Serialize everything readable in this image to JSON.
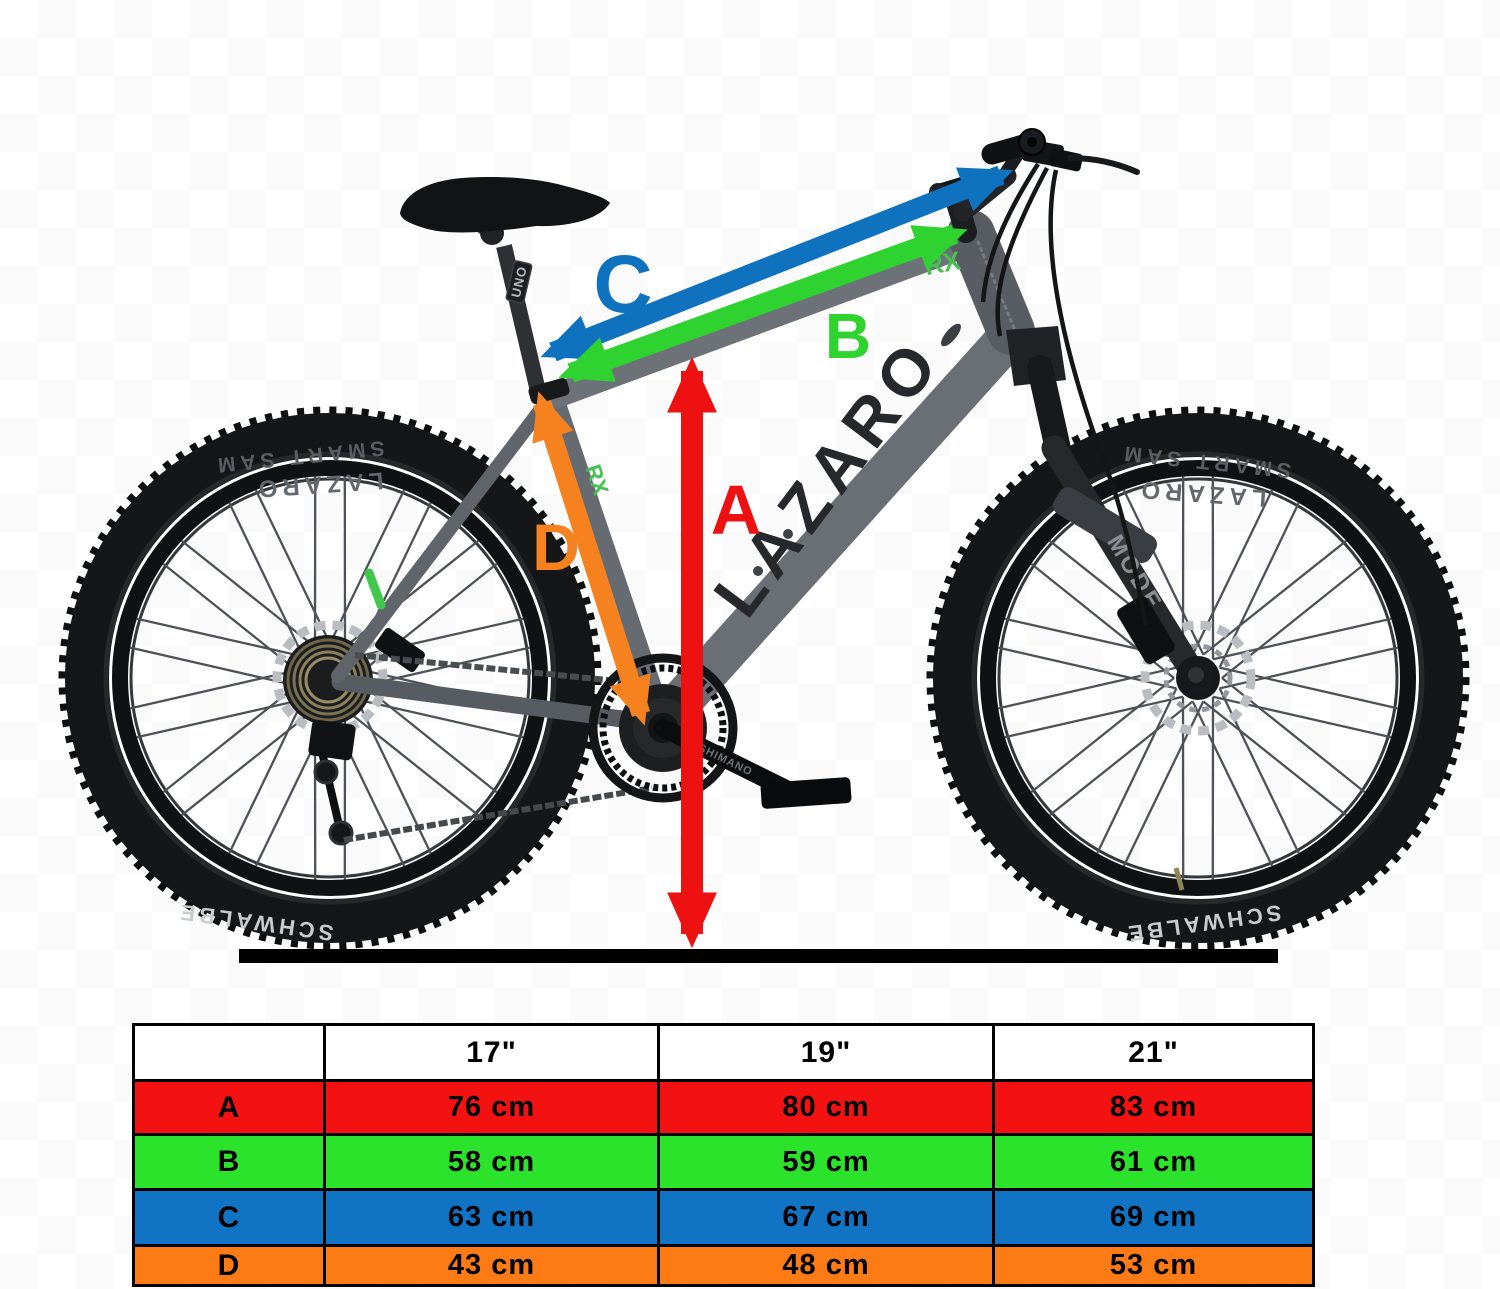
{
  "bike": {
    "frame_brand": "LAZARO",
    "head_badge": "RX",
    "seat_tube_badge": "RX",
    "fork_model": "MODE",
    "seatpost_brand": "UNO",
    "crank_brand": "SHIMANO",
    "tire_brand": "SCHWALBE",
    "tire_model": "SMART SAM",
    "rim_brand": "LAZARO"
  },
  "dimensions": {
    "a": {
      "label": "A",
      "color": "#ee1111"
    },
    "b": {
      "label": "B",
      "color": "#2fd32f"
    },
    "c": {
      "label": "C",
      "color": "#0e72bf"
    },
    "d": {
      "label": "D",
      "color": "#f5821f"
    }
  },
  "table": {
    "headers": [
      "",
      "17\"",
      "19\"",
      "21\""
    ],
    "rows": [
      {
        "label": "A",
        "color": "#f31111",
        "values": [
          "76 cm",
          "80 cm",
          "83 cm"
        ]
      },
      {
        "label": "B",
        "color": "#2be32b",
        "values": [
          "58 cm",
          "59 cm",
          "61 cm"
        ]
      },
      {
        "label": "C",
        "color": "#1173c3",
        "values": [
          "63 cm",
          "67 cm",
          "69 cm"
        ]
      },
      {
        "label": "D",
        "color": "#fc7b14",
        "values": [
          "43 cm",
          "48 cm",
          "53 cm"
        ]
      }
    ]
  }
}
